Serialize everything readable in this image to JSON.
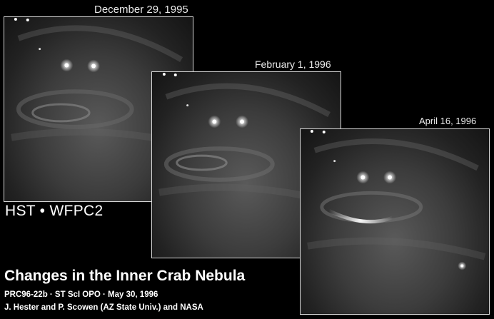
{
  "panels": [
    {
      "date": "December 29, 1995"
    },
    {
      "date": "February 1, 1996"
    },
    {
      "date": "April 16, 1996"
    }
  ],
  "instrument_label": "HST • WFPC2",
  "caption": {
    "title": "Changes in the Inner Crab Nebula",
    "line1": "PRC96-22b · ST ScI OPO · May 30, 1996",
    "line2": "J. Hester and P. Scowen  (AZ State Univ.) and NASA"
  },
  "colors": {
    "background": "#000000",
    "panel_border": "#d8d8d8",
    "text": "#ffffff"
  }
}
